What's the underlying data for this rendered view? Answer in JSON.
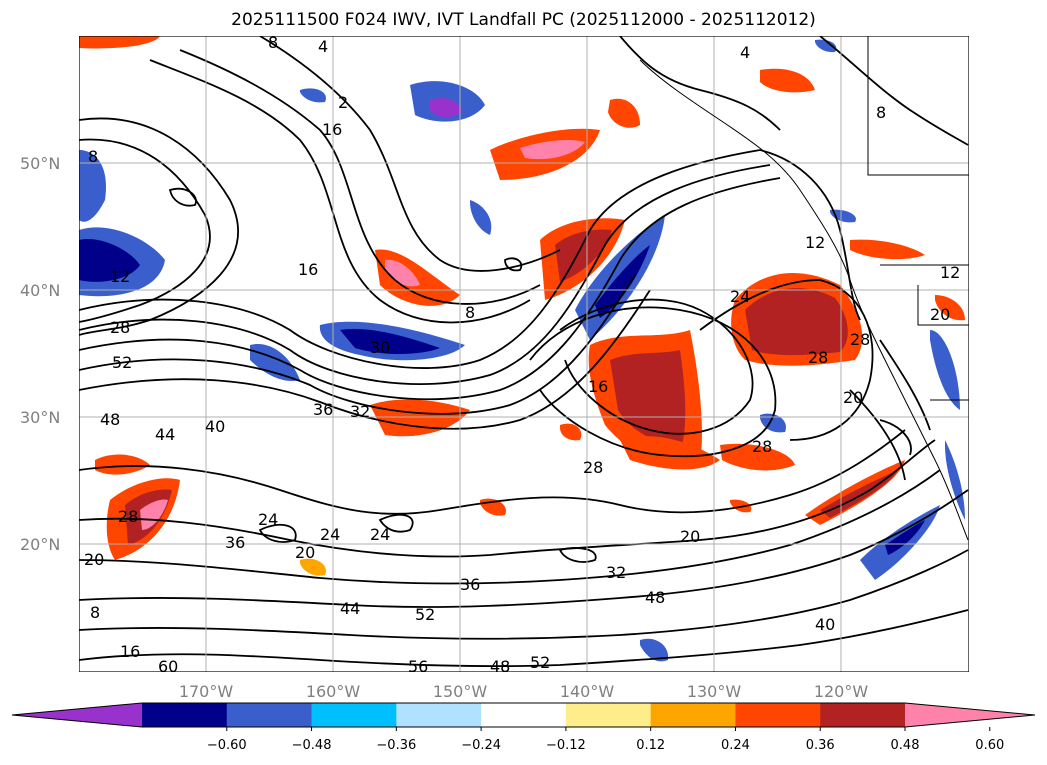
{
  "title": "2025111500 F024 IWV, IVT Landfall PC (2025112000 - 2025112012)",
  "lat_labels": [
    "50°N",
    "40°N",
    "30°N",
    "20°N"
  ],
  "lon_labels": [
    "170°W",
    "160°W",
    "150°W",
    "140°W",
    "130°W",
    "120°W"
  ],
  "colorbar": {
    "ticks": [
      "−0.60",
      "−0.48",
      "−0.36",
      "−0.24",
      "−0.12",
      "0.12",
      "0.24",
      "0.36",
      "0.48",
      "0.60"
    ],
    "colors": [
      "#9932cc",
      "#00008b",
      "#3a5fcd",
      "#00bfff",
      "#b0e2ff",
      "#ffffff",
      "#ffec8b",
      "#ffa500",
      "#ff4500",
      "#b22222",
      "#ff82ab"
    ]
  },
  "contour_labels": [
    "8",
    "4",
    "2",
    "16",
    "8",
    "4",
    "8",
    "12",
    "16",
    "28",
    "52",
    "8",
    "30",
    "48",
    "44",
    "40",
    "36",
    "32",
    "28",
    "24",
    "20",
    "28",
    "24",
    "24",
    "36",
    "20",
    "16",
    "28",
    "24",
    "28",
    "20",
    "20",
    "32",
    "36",
    "48",
    "44",
    "52",
    "48",
    "52",
    "56",
    "40",
    "8",
    "12",
    "60",
    "16",
    "12",
    "28",
    "20"
  ]
}
